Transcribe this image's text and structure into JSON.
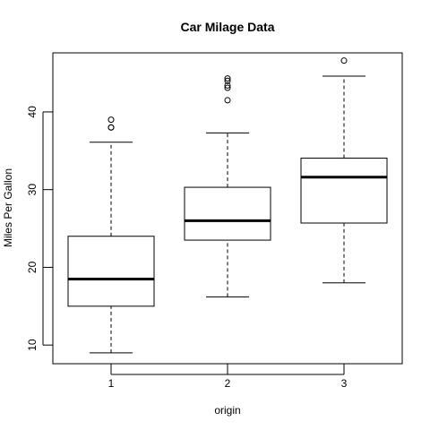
{
  "chart_data": {
    "type": "boxplot",
    "title": "Car Milage Data",
    "xlabel": "origin",
    "ylabel": "Miles Per Gallon",
    "categories": [
      "1",
      "2",
      "3"
    ],
    "ylim": [
      7.6,
      47.6
    ],
    "yticks": [
      10,
      20,
      30,
      40
    ],
    "grid": false,
    "boxes": [
      {
        "category": "1",
        "whisker_low": 9.0,
        "q1": 15.0,
        "median": 18.5,
        "q3": 24.0,
        "whisker_high": 36.1,
        "outliers": [
          38.0,
          38.0,
          39.0
        ]
      },
      {
        "category": "2",
        "whisker_low": 16.2,
        "q1": 23.5,
        "median": 26.0,
        "q3": 30.3,
        "whisker_high": 37.3,
        "outliers": [
          41.5,
          43.1,
          43.4,
          44.0,
          44.3
        ]
      },
      {
        "category": "3",
        "whisker_low": 18.0,
        "q1": 25.7,
        "median": 31.6,
        "q3": 34.05,
        "whisker_high": 44.6,
        "outliers": [
          46.6
        ]
      }
    ]
  }
}
